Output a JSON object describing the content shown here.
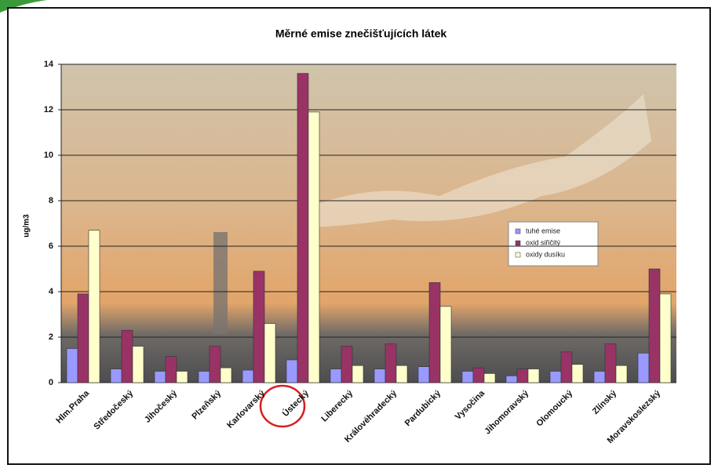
{
  "chart_data": {
    "type": "bar",
    "title": "Měrné emise znečišťujících látek",
    "y_label": "ug/m3",
    "categories": [
      "Hlm.Praha",
      "Středočeský",
      "Jihočeský",
      "Plzeňský",
      "Karlovarský",
      "Ústecký",
      "Liberecký",
      "Královéhradecký",
      "Pardubický",
      "Vysočina",
      "Jihomoravský",
      "Olomoucký",
      "Zlínský",
      "Moravskoslezský"
    ],
    "series": [
      {
        "name": "tuhé emise",
        "color": "#9999ff",
        "values": [
          1.5,
          0.6,
          0.5,
          0.5,
          0.55,
          1.0,
          0.6,
          0.6,
          0.7,
          0.5,
          0.3,
          0.5,
          0.5,
          1.3
        ]
      },
      {
        "name": "oxid siřičitý",
        "color": "#993366",
        "values": [
          3.9,
          2.3,
          1.15,
          1.6,
          4.9,
          13.6,
          1.6,
          1.7,
          4.4,
          0.65,
          0.6,
          1.35,
          1.7,
          5.0
        ]
      },
      {
        "name": "oxidy dusíku",
        "color": "#ffffcc",
        "values": [
          6.7,
          1.6,
          0.5,
          0.65,
          2.6,
          11.9,
          0.75,
          0.75,
          3.35,
          0.4,
          0.6,
          0.8,
          0.75,
          3.9
        ]
      }
    ],
    "ylim": [
      0,
      14
    ],
    "yticks": [
      0,
      2,
      4,
      6,
      8,
      10,
      12,
      14
    ],
    "grid": true
  }
}
